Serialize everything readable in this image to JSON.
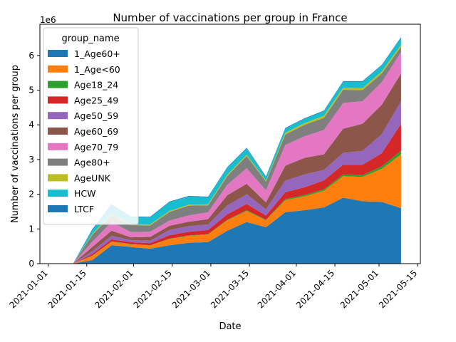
{
  "chart_data": {
    "type": "area",
    "title": "Number of vaccinations per group in France",
    "xlabel": "Date",
    "ylabel": "Number of vaccinations per group",
    "y_multiplier_label": "1e6",
    "ylim": [
      0,
      6900000
    ],
    "xlim": [
      "2020-12-29",
      "2021-05-16"
    ],
    "x_ticks": [
      "2021-01-01",
      "2021-01-15",
      "2021-02-01",
      "2021-02-15",
      "2021-03-01",
      "2021-03-15",
      "2021-04-01",
      "2021-04-15",
      "2021-05-01",
      "2021-05-15"
    ],
    "y_ticks": [
      0,
      1000000,
      2000000,
      3000000,
      4000000,
      5000000,
      6000000
    ],
    "y_tick_labels": [
      "0",
      "1",
      "2",
      "3",
      "4",
      "5",
      "6"
    ],
    "legend_title": "group_name",
    "legend_position": "upper-left",
    "x": [
      "2021-01-03",
      "2021-01-10",
      "2021-01-17",
      "2021-01-24",
      "2021-01-31",
      "2021-02-07",
      "2021-02-14",
      "2021-02-21",
      "2021-02-28",
      "2021-03-07",
      "2021-03-14",
      "2021-03-21",
      "2021-03-28",
      "2021-04-04",
      "2021-04-11",
      "2021-04-18",
      "2021-04-25",
      "2021-05-02",
      "2021-05-09"
    ],
    "series": [
      {
        "name": "1_Age60+",
        "color": "#1f77b4",
        "values": [
          0,
          0,
          100000,
          530000,
          480000,
          430000,
          530000,
          600000,
          620000,
          950000,
          1200000,
          1050000,
          1480000,
          1540000,
          1620000,
          1900000,
          1800000,
          1780000,
          1600000
        ]
      },
      {
        "name": "1_Age<60",
        "color": "#ff7f0e",
        "values": [
          0,
          0,
          120000,
          100000,
          80000,
          90000,
          180000,
          200000,
          220000,
          300000,
          320000,
          200000,
          350000,
          400000,
          480000,
          620000,
          700000,
          950000,
          1550000
        ]
      },
      {
        "name": "Age18_24",
        "color": "#2ca02c",
        "values": [
          0,
          0,
          10000,
          10000,
          8000,
          10000,
          10000,
          10000,
          10000,
          15000,
          20000,
          15000,
          30000,
          40000,
          40000,
          50000,
          50000,
          70000,
          100000
        ]
      },
      {
        "name": "Age25_49",
        "color": "#d62728",
        "values": [
          0,
          0,
          50000,
          60000,
          50000,
          60000,
          100000,
          110000,
          120000,
          160000,
          180000,
          120000,
          200000,
          220000,
          260000,
          280000,
          300000,
          380000,
          780000
        ]
      },
      {
        "name": "Age50_59",
        "color": "#9467bd",
        "values": [
          0,
          0,
          80000,
          100000,
          60000,
          70000,
          150000,
          160000,
          160000,
          250000,
          280000,
          180000,
          330000,
          370000,
          300000,
          340000,
          400000,
          550000,
          650000
        ]
      },
      {
        "name": "Age60_69",
        "color": "#8c564b",
        "values": [
          0,
          0,
          120000,
          150000,
          80000,
          110000,
          120000,
          130000,
          150000,
          300000,
          300000,
          200000,
          430000,
          480000,
          450000,
          700000,
          780000,
          850000,
          800000
        ]
      },
      {
        "name": "Age70_79",
        "color": "#e377c2",
        "values": [
          0,
          0,
          150000,
          250000,
          150000,
          150000,
          150000,
          180000,
          200000,
          300000,
          450000,
          350000,
          600000,
          620000,
          700000,
          740000,
          650000,
          650000,
          620000
        ]
      },
      {
        "name": "Age80+",
        "color": "#7f7f7f",
        "values": [
          0,
          0,
          200000,
          200000,
          200000,
          180000,
          250000,
          280000,
          200000,
          250000,
          350000,
          250000,
          300000,
          330000,
          350000,
          380000,
          320000,
          250000,
          150000
        ]
      },
      {
        "name": "AgeUNK",
        "color": "#bcbd22",
        "values": [
          0,
          0,
          30000,
          30000,
          30000,
          30000,
          30000,
          30000,
          30000,
          40000,
          40000,
          30000,
          50000,
          50000,
          60000,
          60000,
          60000,
          60000,
          60000
        ]
      },
      {
        "name": "HCW",
        "color": "#17becf",
        "values": [
          0,
          0,
          100000,
          250000,
          200000,
          200000,
          250000,
          230000,
          200000,
          200000,
          180000,
          100000,
          120000,
          120000,
          130000,
          170000,
          180000,
          170000,
          200000
        ]
      },
      {
        "name": "LTCF",
        "color": "#1f77b4",
        "values": [
          0,
          0,
          30000,
          30000,
          20000,
          20000,
          20000,
          20000,
          20000,
          20000,
          20000,
          20000,
          20000,
          20000,
          20000,
          20000,
          20000,
          20000,
          20000
        ]
      }
    ]
  }
}
